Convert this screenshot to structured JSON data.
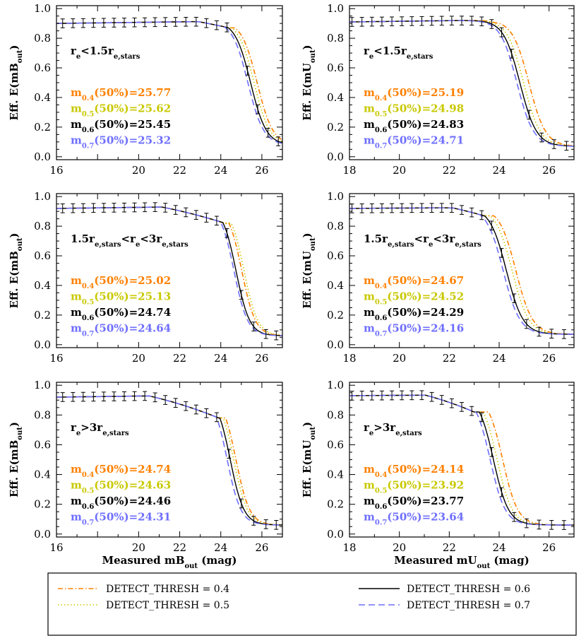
{
  "colors": {
    "t04": "#ff8000",
    "t05": "#c8c800",
    "t06": "#000000",
    "t07": "#6e6eff"
  },
  "legend": {
    "items": [
      {
        "key": "t04",
        "label": "DETECT_THRESH = 0.4",
        "dash": "dashdot"
      },
      {
        "key": "t05",
        "label": "DETECT_THRESH = 0.5",
        "dash": "dotted"
      },
      {
        "key": "t06",
        "label": "DETECT_THRESH = 0.6",
        "dash": "solid"
      },
      {
        "key": "t07",
        "label": "DETECT_THRESH = 0.7",
        "dash": "dashed"
      }
    ]
  },
  "chart_data": [
    {
      "type": "line",
      "band": "B",
      "ylabel": "Eff. E(mB_out)",
      "xlabel": "Measured mB_out  (mag)",
      "xlim": [
        16,
        27
      ],
      "ylim": [
        -0.02,
        1.02
      ],
      "xticks": [
        "16",
        "20",
        "22",
        "24",
        "26"
      ],
      "yticks": [
        "0.0",
        "0.2",
        "0.4",
        "0.6",
        "0.8",
        "1.0"
      ],
      "condition": "re<1.5re,stars",
      "m50": [
        {
          "key": "t04",
          "thr": "0.4",
          "value": "25.77"
        },
        {
          "key": "t05",
          "thr": "0.5",
          "value": "25.62"
        },
        {
          "key": "t06",
          "thr": "0.6",
          "value": "25.45"
        },
        {
          "key": "t07",
          "thr": "0.7",
          "value": "25.32"
        }
      ],
      "curve_shape": {
        "x_shoulder": 24.4,
        "y_shoulder": 0.87,
        "width": 0.38,
        "floor": 0.08,
        "floor_slope": 0.02
      },
      "errorbars": {
        "x": [
          16.3,
          16.8,
          17.3,
          17.8,
          18.3,
          18.8,
          19.3,
          19.8,
          20.3,
          20.8,
          21.3,
          21.8,
          22.3,
          22.8,
          23.3,
          23.8,
          24.3,
          25.3,
          25.8,
          26.3,
          26.8
        ],
        "err": 0.03
      }
    },
    {
      "type": "line",
      "band": "U",
      "ylabel": "Eff. E(mU_out)",
      "xlabel": "Measured mU_out  (mag)",
      "xlim": [
        18,
        27
      ],
      "ylim": [
        -0.02,
        1.02
      ],
      "xticks": [
        "18",
        "20",
        "22",
        "24",
        "26"
      ],
      "yticks": [
        "0.0",
        "0.2",
        "0.4",
        "0.6",
        "0.8",
        "1.0"
      ],
      "condition": "re<1.5re,stars",
      "m50": [
        {
          "key": "t04",
          "thr": "0.4",
          "value": "25.19"
        },
        {
          "key": "t05",
          "thr": "0.5",
          "value": "24.98"
        },
        {
          "key": "t06",
          "thr": "0.6",
          "value": "24.83"
        },
        {
          "key": "t07",
          "thr": "0.7",
          "value": "24.71"
        }
      ],
      "curve_shape": {
        "x_shoulder": 24.0,
        "y_shoulder": 0.9,
        "width": 0.33,
        "floor": 0.07,
        "floor_slope": 0.02
      },
      "errorbars": {
        "x": [
          18.1,
          18.5,
          18.9,
          19.3,
          19.7,
          20.1,
          20.5,
          20.9,
          21.3,
          21.7,
          22.1,
          22.5,
          22.9,
          23.3,
          23.7,
          24.1,
          24.5,
          25.2,
          25.7,
          26.2,
          26.7
        ],
        "err": 0.03
      }
    },
    {
      "type": "line",
      "band": "B",
      "ylabel": "Eff. E(mB_out)",
      "xlabel": "Measured mB_out  (mag)",
      "xlim": [
        16,
        27
      ],
      "ylim": [
        -0.02,
        1.02
      ],
      "xticks": [
        "16",
        "20",
        "22",
        "24",
        "26"
      ],
      "yticks": [
        "0.0",
        "0.2",
        "0.4",
        "0.6",
        "0.8",
        "1.0"
      ],
      "condition": "1.5re,stars<re<3re,stars",
      "m50": [
        {
          "key": "t04",
          "thr": "0.4",
          "value": "25.02"
        },
        {
          "key": "t05",
          "thr": "0.5",
          "value": "25.13"
        },
        {
          "key": "t06",
          "thr": "0.6",
          "value": "24.74"
        },
        {
          "key": "t07",
          "thr": "0.7",
          "value": "24.64"
        }
      ],
      "curve_shape": {
        "x_shoulder": 24.2,
        "y_shoulder": 0.82,
        "width": 0.33,
        "floor": 0.06,
        "floor_slope": 0.02
      },
      "errorbars": {
        "x": [
          16.3,
          16.8,
          17.3,
          17.8,
          18.3,
          18.8,
          19.3,
          19.8,
          20.3,
          20.8,
          21.3,
          21.8,
          22.3,
          22.8,
          23.3,
          23.8,
          24.3,
          25.0,
          25.6,
          26.2,
          26.7
        ],
        "err": 0.03
      }
    },
    {
      "type": "line",
      "band": "U",
      "ylabel": "Eff. E(mU_out)",
      "xlabel": "Measured mU_out  (mag)",
      "xlim": [
        18,
        27
      ],
      "ylim": [
        -0.02,
        1.02
      ],
      "xticks": [
        "18",
        "20",
        "22",
        "24",
        "26"
      ],
      "yticks": [
        "0.0",
        "0.2",
        "0.4",
        "0.6",
        "0.8",
        "1.0"
      ],
      "condition": "1.5re,stars<re<3re,stars",
      "m50": [
        {
          "key": "t04",
          "thr": "0.4",
          "value": "24.67"
        },
        {
          "key": "t05",
          "thr": "0.5",
          "value": "24.52"
        },
        {
          "key": "t06",
          "thr": "0.6",
          "value": "24.29"
        },
        {
          "key": "t07",
          "thr": "0.7",
          "value": "24.16"
        }
      ],
      "curve_shape": {
        "x_shoulder": 23.4,
        "y_shoulder": 0.87,
        "width": 0.33,
        "floor": 0.07,
        "floor_slope": 0.01
      },
      "errorbars": {
        "x": [
          18.1,
          18.5,
          18.9,
          19.3,
          19.7,
          20.1,
          20.5,
          20.9,
          21.3,
          21.7,
          22.1,
          22.5,
          22.9,
          23.3,
          23.7,
          24.1,
          24.6,
          25.1,
          25.6,
          26.1,
          26.6
        ],
        "err": 0.03
      }
    },
    {
      "type": "line",
      "band": "B",
      "ylabel": "Eff. E(mB_out)",
      "xlabel": "Measured mB_out  (mag)",
      "xlim": [
        16,
        27
      ],
      "ylim": [
        -0.02,
        1.02
      ],
      "xticks": [
        "16",
        "20",
        "22",
        "24",
        "26"
      ],
      "yticks": [
        "0.0",
        "0.2",
        "0.4",
        "0.6",
        "0.8",
        "1.0"
      ],
      "condition": "re>3re,stars",
      "m50": [
        {
          "key": "t04",
          "thr": "0.4",
          "value": "24.74"
        },
        {
          "key": "t05",
          "thr": "0.5",
          "value": "24.63"
        },
        {
          "key": "t06",
          "thr": "0.6",
          "value": "24.46"
        },
        {
          "key": "t07",
          "thr": "0.7",
          "value": "24.31"
        }
      ],
      "curve_shape": {
        "x_shoulder": 23.9,
        "y_shoulder": 0.78,
        "width": 0.33,
        "floor": 0.06,
        "floor_slope": 0.02
      },
      "errorbars": {
        "x": [
          16.3,
          16.8,
          17.3,
          17.8,
          18.3,
          18.8,
          19.3,
          19.8,
          20.3,
          20.8,
          21.3,
          21.8,
          22.3,
          22.8,
          23.3,
          23.8,
          24.4,
          25.0,
          25.6,
          26.2,
          26.7
        ],
        "err": 0.03
      }
    },
    {
      "type": "line",
      "band": "U",
      "ylabel": "Eff. E(mU_out)",
      "xlabel": "Measured mU_out  (mag)",
      "xlim": [
        18,
        27
      ],
      "ylim": [
        -0.02,
        1.02
      ],
      "xticks": [
        "18",
        "20",
        "22",
        "24",
        "26"
      ],
      "yticks": [
        "0.0",
        "0.2",
        "0.4",
        "0.6",
        "0.8",
        "1.0"
      ],
      "condition": "re>3re,stars",
      "m50": [
        {
          "key": "t04",
          "thr": "0.4",
          "value": "24.14"
        },
        {
          "key": "t05",
          "thr": "0.5",
          "value": "23.92"
        },
        {
          "key": "t06",
          "thr": "0.6",
          "value": "23.77"
        },
        {
          "key": "t07",
          "thr": "0.7",
          "value": "23.64"
        }
      ],
      "curve_shape": {
        "x_shoulder": 23.0,
        "y_shoulder": 0.82,
        "width": 0.3,
        "floor": 0.06,
        "floor_slope": 0.01
      },
      "errorbars": {
        "x": [
          18.1,
          18.5,
          18.9,
          19.3,
          19.7,
          20.1,
          20.5,
          20.9,
          21.3,
          21.7,
          22.1,
          22.5,
          22.9,
          23.3,
          23.7,
          24.1,
          24.6,
          25.1,
          25.6,
          26.1,
          26.6
        ],
        "err": 0.03
      }
    }
  ]
}
